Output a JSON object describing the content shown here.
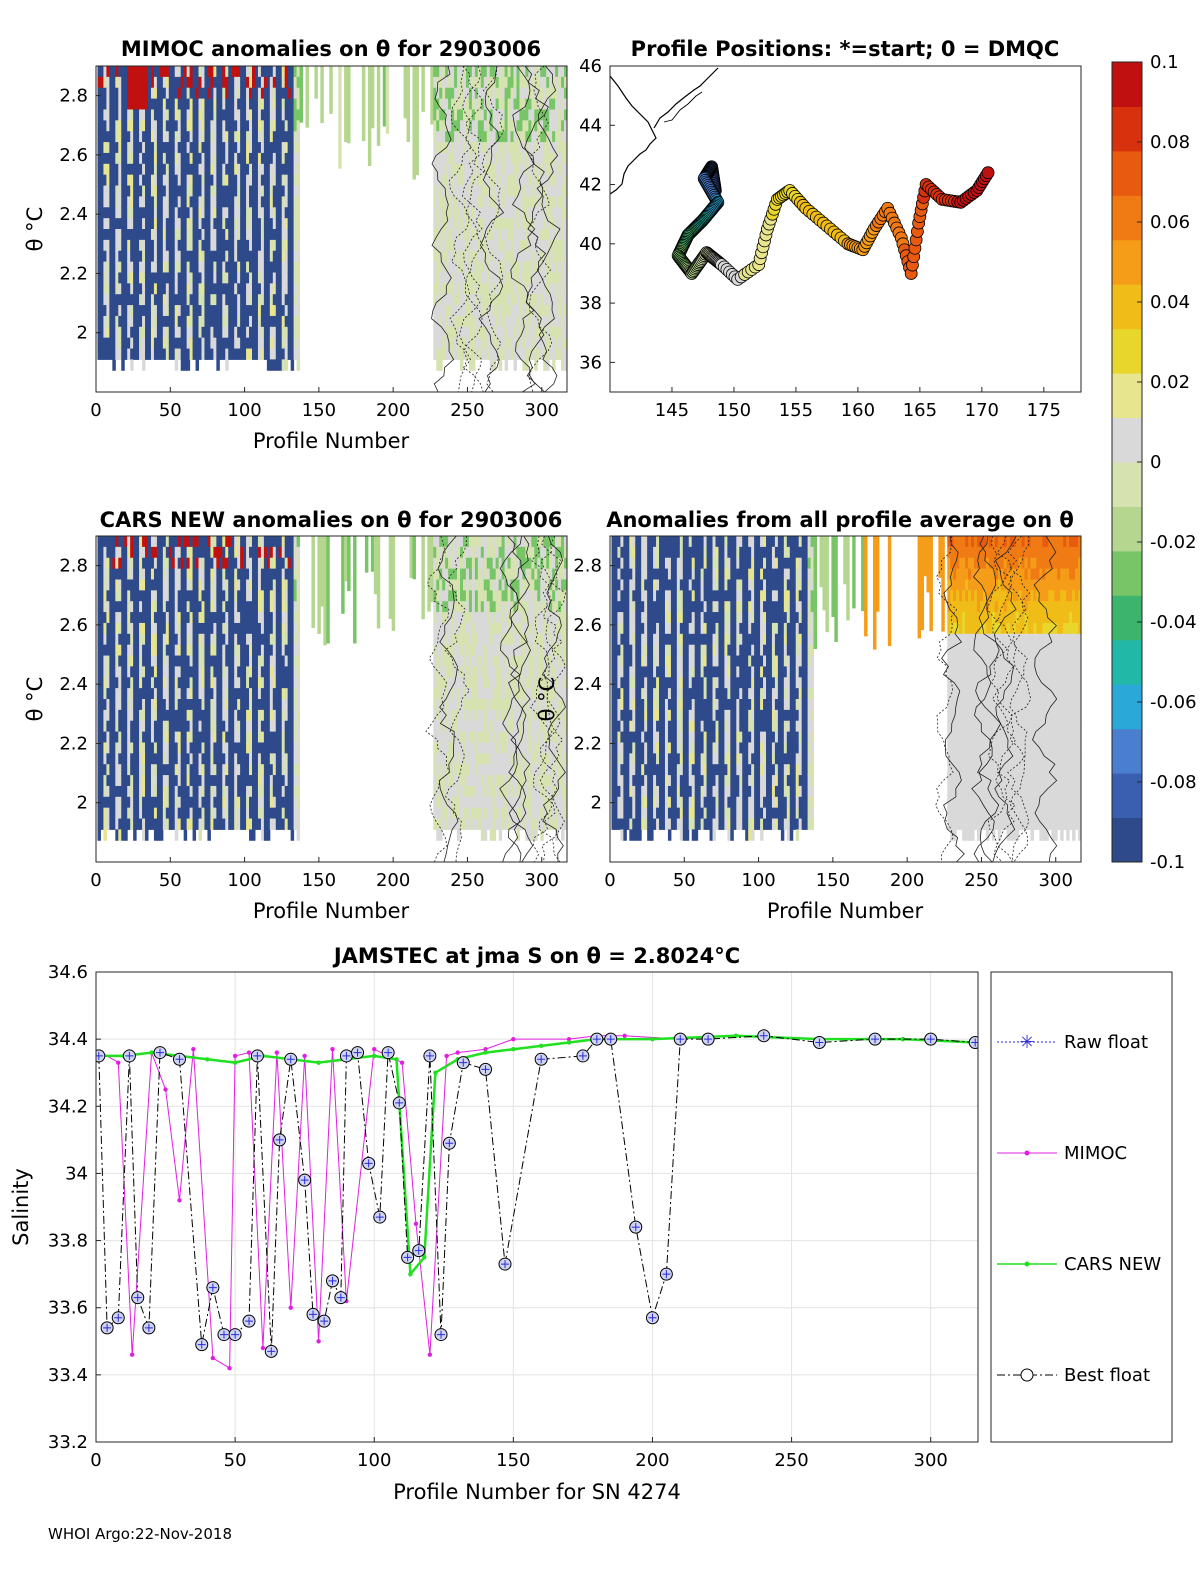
{
  "footer": "WHOI Argo:22-Nov-2018",
  "colorbar": {
    "ticks": [
      "0.1",
      "0.08",
      "0.06",
      "0.04",
      "0.02",
      "0",
      "-0.02",
      "-0.04",
      "-0.06",
      "-0.08",
      "-0.1"
    ],
    "range": [
      -0.1,
      0.1
    ],
    "colors": [
      "#2e4a8b",
      "#3a5fb0",
      "#4a7fd0",
      "#2aa8d8",
      "#22b8a8",
      "#3cb46e",
      "#77c567",
      "#b4d68e",
      "#d6e2b0",
      "#d9d9d9",
      "#e8e58f",
      "#e8d62c",
      "#f0bc18",
      "#f59c18",
      "#f07a14",
      "#e85a10",
      "#d8310e",
      "#c01010"
    ]
  },
  "chart_data": [
    {
      "type": "heatmap",
      "title": "MIMOC anomalies on θ  for 2903006",
      "xlabel": "Profile Number",
      "ylabel": "θ °C",
      "xlim": [
        0,
        317
      ],
      "ylim": [
        1.8,
        2.9
      ],
      "xticks": [
        "0",
        "50",
        "100",
        "150",
        "200",
        "250",
        "300"
      ],
      "yticks": [
        "2",
        "2.2",
        "2.4",
        "2.6",
        "2.8"
      ]
    },
    {
      "type": "scatter",
      "title": "Profile Positions: *=start; 0 = DMQC",
      "xlim": [
        140,
        178
      ],
      "ylim": [
        35,
        46
      ],
      "xticks": [
        "145",
        "150",
        "155",
        "160",
        "165",
        "170",
        "175"
      ],
      "yticks": [
        "36",
        "38",
        "40",
        "42",
        "44",
        "46"
      ],
      "track": [
        [
          148.5,
          41.8
        ],
        [
          148.2,
          42.6
        ],
        [
          147.6,
          42.2
        ],
        [
          148.7,
          41.4
        ],
        [
          147.5,
          40.8
        ],
        [
          146.3,
          40.3
        ],
        [
          145.5,
          39.6
        ],
        [
          146.6,
          39.0
        ],
        [
          147.8,
          39.7
        ],
        [
          149.0,
          39.3
        ],
        [
          150.3,
          38.8
        ],
        [
          152.0,
          39.3
        ],
        [
          152.7,
          40.5
        ],
        [
          153.5,
          41.5
        ],
        [
          154.5,
          41.8
        ],
        [
          155.8,
          41.2
        ],
        [
          157.5,
          40.6
        ],
        [
          159.2,
          40.0
        ],
        [
          160.4,
          39.8
        ],
        [
          161.3,
          40.5
        ],
        [
          162.4,
          41.2
        ],
        [
          163.5,
          40.2
        ],
        [
          164.3,
          39.0
        ],
        [
          164.9,
          40.7
        ],
        [
          165.5,
          42.0
        ],
        [
          166.8,
          41.5
        ],
        [
          168.3,
          41.4
        ],
        [
          169.6,
          41.8
        ],
        [
          170.5,
          42.4
        ]
      ]
    },
    {
      "type": "heatmap",
      "title": "CARS NEW anomalies on θ for 2903006",
      "xlabel": "Profile Number",
      "ylabel": "θ °C",
      "xlim": [
        0,
        317
      ],
      "ylim": [
        1.8,
        2.9
      ],
      "xticks": [
        "0",
        "50",
        "100",
        "150",
        "200",
        "250",
        "300"
      ],
      "yticks": [
        "2",
        "2.2",
        "2.4",
        "2.6",
        "2.8"
      ]
    },
    {
      "type": "heatmap",
      "title": "Anomalies from all profile average on θ",
      "xlabel": "Profile Number",
      "ylabel": "θ °C",
      "xlim": [
        0,
        317
      ],
      "ylim": [
        1.8,
        2.9
      ],
      "xticks": [
        "0",
        "50",
        "100",
        "150",
        "200",
        "250",
        "300"
      ],
      "yticks": [
        "2",
        "2.2",
        "2.4",
        "2.6",
        "2.8"
      ]
    },
    {
      "type": "line",
      "title": "JAMSTEC at jma S on θ = 2.8024°C",
      "xlabel": "Profile Number for SN 4274",
      "ylabel": "Salinity",
      "xlim": [
        0,
        317
      ],
      "ylim": [
        33.2,
        34.6
      ],
      "xticks": [
        "0",
        "50",
        "100",
        "150",
        "200",
        "250",
        "300"
      ],
      "yticks": [
        "33.2",
        "33.4",
        "33.6",
        "33.8",
        "34",
        "34.2",
        "34.4",
        "34.6"
      ],
      "legend": [
        "Raw float",
        "MIMOC",
        "CARS NEW",
        "Best float"
      ],
      "series": [
        {
          "name": "MIMOC",
          "x": [
            2,
            8,
            13,
            20,
            25,
            30,
            35,
            42,
            48,
            50,
            55,
            60,
            65,
            70,
            75,
            80,
            85,
            90,
            100,
            110,
            115,
            120,
            126,
            130,
            140,
            150,
            170,
            180,
            190,
            210,
            230,
            260,
            290,
            316
          ],
          "y": [
            34.36,
            34.33,
            33.46,
            34.36,
            34.25,
            33.92,
            34.37,
            33.45,
            33.42,
            34.35,
            34.36,
            33.48,
            34.36,
            33.6,
            34.35,
            33.5,
            34.37,
            33.62,
            34.37,
            34.33,
            33.85,
            33.46,
            34.35,
            34.36,
            34.37,
            34.4,
            34.4,
            34.41,
            34.41,
            34.4,
            34.41,
            34.4,
            34.4,
            34.39
          ]
        },
        {
          "name": "CARS NEW",
          "x": [
            0,
            10,
            20,
            30,
            40,
            50,
            60,
            70,
            80,
            90,
            100,
            108,
            113,
            118,
            122,
            130,
            140,
            150,
            160,
            170,
            180,
            200,
            230,
            260,
            290,
            316
          ],
          "y": [
            34.35,
            34.35,
            34.36,
            34.35,
            34.34,
            34.33,
            34.35,
            34.34,
            34.33,
            34.34,
            34.35,
            34.34,
            33.7,
            33.75,
            34.3,
            34.34,
            34.36,
            34.37,
            34.38,
            34.39,
            34.4,
            34.4,
            34.41,
            34.4,
            34.4,
            34.39
          ]
        },
        {
          "name": "Best float",
          "x": [
            1,
            4,
            8,
            12,
            15,
            19,
            23,
            30,
            38,
            42,
            46,
            50,
            55,
            58,
            63,
            66,
            70,
            75,
            78,
            82,
            85,
            88,
            90,
            94,
            98,
            102,
            105,
            109,
            112,
            116,
            120,
            124,
            127,
            132,
            140,
            147,
            160,
            175,
            180,
            185,
            194,
            200,
            205,
            210,
            220,
            240,
            260,
            280,
            300,
            316
          ],
          "y": [
            34.35,
            33.54,
            33.57,
            34.35,
            33.63,
            33.54,
            34.36,
            34.34,
            33.49,
            33.66,
            33.52,
            33.52,
            33.56,
            34.35,
            33.47,
            34.1,
            34.34,
            33.98,
            33.58,
            33.56,
            33.68,
            33.63,
            34.35,
            34.36,
            34.03,
            33.87,
            34.36,
            34.21,
            33.75,
            33.77,
            34.35,
            33.52,
            34.09,
            34.33,
            34.31,
            33.73,
            34.34,
            34.35,
            34.4,
            34.4,
            33.84,
            33.57,
            33.7,
            34.4,
            34.4,
            34.41,
            34.39,
            34.4,
            34.4,
            34.39
          ]
        }
      ]
    }
  ]
}
